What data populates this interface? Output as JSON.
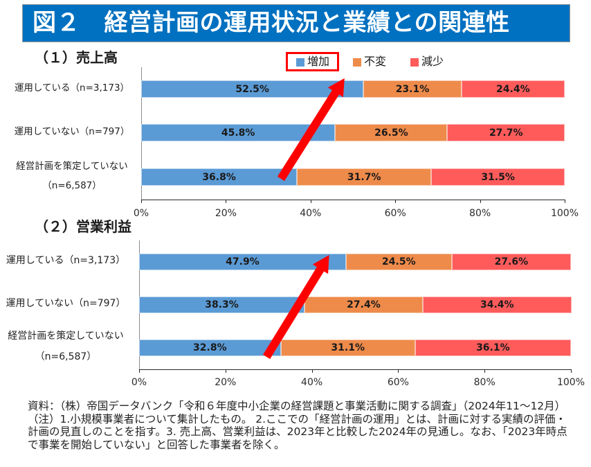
{
  "header": {
    "title": "図２　経営計画の運用状況と業績との関連性",
    "background_color": "#0070C0"
  },
  "chart_data": [
    {
      "type": "bar",
      "orientation": "horizontal",
      "stacked": true,
      "title": "（１）売上高",
      "categories": [
        "運用している（n=3,173）",
        "運用していない（n=797）",
        "経営計画を策定していない（n=6,587）"
      ],
      "category_lines": [
        [
          "運用している（n=3,173）"
        ],
        [
          "運用していない（n=797）"
        ],
        [
          "経営計画を策定していない",
          "（n=6,587）"
        ]
      ],
      "series": [
        {
          "name": "増加",
          "color": "#5B9BD5",
          "values": [
            52.5,
            45.8,
            36.8
          ],
          "labels": [
            "52.5%",
            "45.8%",
            "36.8%"
          ]
        },
        {
          "name": "不変",
          "color": "#EE8B4B",
          "values": [
            23.1,
            26.5,
            31.7
          ],
          "labels": [
            "23.1%",
            "26.5%",
            "31.7%"
          ]
        },
        {
          "name": "減少",
          "color": "#FF5B5B",
          "values": [
            24.4,
            27.7,
            31.5
          ],
          "labels": [
            "24.4%",
            "27.7%",
            "31.5%"
          ]
        }
      ],
      "xlim": [
        0,
        100
      ],
      "xticks": [
        0,
        20,
        40,
        60,
        80,
        100
      ],
      "xtick_labels": [
        "0%",
        "20%",
        "40%",
        "60%",
        "80%",
        "100%"
      ],
      "xlabel": "",
      "ylabel": "",
      "grid": false,
      "legend": {
        "placement": "top-center",
        "entries": [
          "増加",
          "不変",
          "減少"
        ],
        "highlighted_entry": "増加",
        "highlight_color": "#FF0000"
      },
      "annotations": [
        {
          "type": "arrow",
          "color": "#FF0000",
          "from": {
            "category": "経営計画を策定していない（n=6,587）",
            "x": 33
          },
          "to": {
            "category": "運用している（n=3,173）",
            "x": 48
          }
        }
      ]
    },
    {
      "type": "bar",
      "orientation": "horizontal",
      "stacked": true,
      "title": "（２）営業利益",
      "categories": [
        "運用している（n=3,173）",
        "運用していない（n=797）",
        "経営計画を策定していない（n=6,587）"
      ],
      "category_lines": [
        [
          "運用している（n=3,173）"
        ],
        [
          "運用していない（n=797）"
        ],
        [
          "経営計画を策定していない",
          "（n=6,587）"
        ]
      ],
      "series": [
        {
          "name": "増加",
          "color": "#5B9BD5",
          "values": [
            47.9,
            38.3,
            32.8
          ],
          "labels": [
            "47.9%",
            "38.3%",
            "32.8%"
          ]
        },
        {
          "name": "不変",
          "color": "#EE8B4B",
          "values": [
            24.5,
            27.4,
            31.1
          ],
          "labels": [
            "24.5%",
            "27.4%",
            "31.1%"
          ]
        },
        {
          "name": "減少",
          "color": "#FF5B5B",
          "values": [
            27.6,
            34.4,
            36.1
          ],
          "labels": [
            "27.6%",
            "34.4%",
            "36.1%"
          ]
        }
      ],
      "xlim": [
        0,
        100
      ],
      "xticks": [
        0,
        20,
        40,
        60,
        80,
        100
      ],
      "xtick_labels": [
        "0%",
        "20%",
        "40%",
        "60%",
        "80%",
        "100%"
      ],
      "xlabel": "",
      "ylabel": "",
      "grid": false,
      "annotations": [
        {
          "type": "arrow",
          "color": "#FF0000",
          "from": {
            "category": "経営計画を策定していない（n=6,587）",
            "x": 29.5
          },
          "to": {
            "category": "運用している（n=3,173）",
            "x": 44
          }
        }
      ]
    }
  ],
  "footer": {
    "lines": [
      "資料：（株）帝国データバンク「令和６年度中小企業の経営課題と事業活動に関する調査」（2024年11～12月）",
      "（注）1.小規模事業者について集計したもの。 2.ここでの「経営計画の運用」とは、計画に対する実績の評価・",
      "計画の見直しのことを指す。3. 売上高、営業利益は、2023年と比較した2024年の見通し。なお、「2023年時点",
      "で事業を開始していない」と回答した事業者を除く。"
    ]
  }
}
